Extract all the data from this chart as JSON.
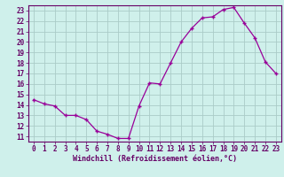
{
  "x": [
    0,
    1,
    2,
    3,
    4,
    5,
    6,
    7,
    8,
    9,
    10,
    11,
    12,
    13,
    14,
    15,
    16,
    17,
    18,
    19,
    20,
    21,
    22,
    23
  ],
  "y": [
    14.5,
    14.1,
    13.9,
    13.0,
    13.0,
    12.6,
    11.5,
    11.2,
    10.8,
    10.8,
    13.9,
    16.1,
    16.0,
    18.0,
    20.0,
    21.3,
    22.3,
    22.4,
    23.1,
    23.3,
    21.8,
    20.4,
    18.1,
    17.0
  ],
  "line_color": "#990099",
  "marker": "+",
  "marker_size": 3.5,
  "marker_linewidth": 1.0,
  "bg_color": "#cff0eb",
  "grid_color": "#aaccc8",
  "axis_color": "#660066",
  "tick_color": "#660066",
  "xlabel": "Windchill (Refroidissement éolien,°C)",
  "xlim": [
    -0.5,
    23.5
  ],
  "ylim": [
    10.5,
    23.5
  ],
  "yticks": [
    11,
    12,
    13,
    14,
    15,
    16,
    17,
    18,
    19,
    20,
    21,
    22,
    23
  ],
  "xticks": [
    0,
    1,
    2,
    3,
    4,
    5,
    6,
    7,
    8,
    9,
    10,
    11,
    12,
    13,
    14,
    15,
    16,
    17,
    18,
    19,
    20,
    21,
    22,
    23
  ],
  "xlabel_fontsize": 6.0,
  "tick_fontsize": 5.5,
  "linewidth": 0.9
}
